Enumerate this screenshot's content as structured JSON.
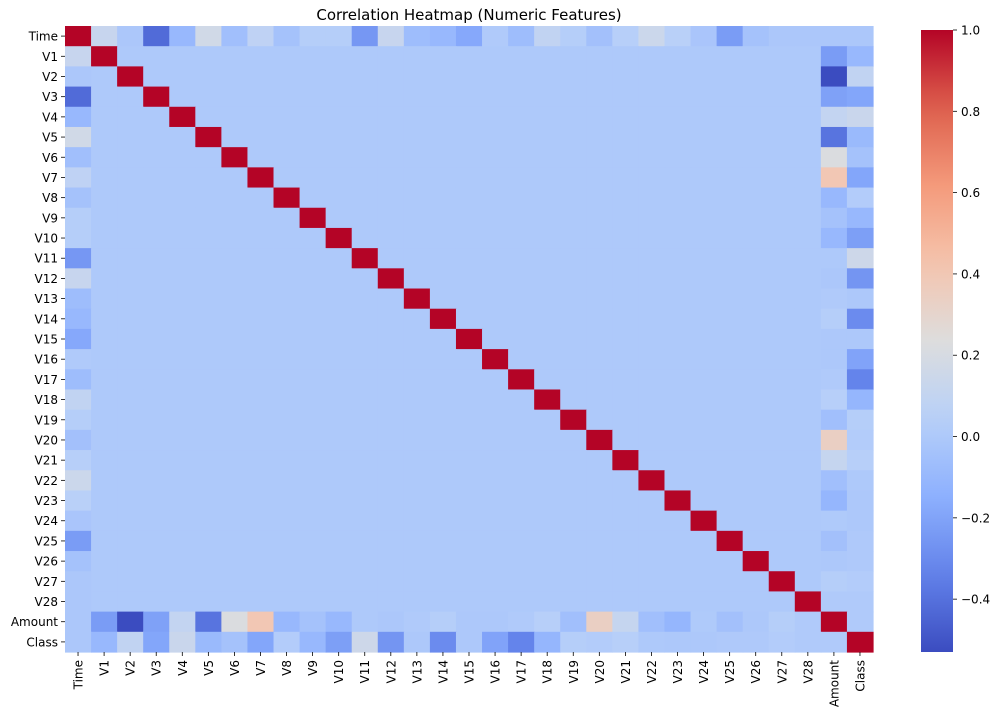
{
  "chart_data": {
    "type": "heatmap",
    "title": "Correlation Heatmap (Numeric Features)",
    "xlabel": "",
    "ylabel": "",
    "labels": [
      "Time",
      "V1",
      "V2",
      "V3",
      "V4",
      "V5",
      "V6",
      "V7",
      "V8",
      "V9",
      "V10",
      "V11",
      "V12",
      "V13",
      "V14",
      "V15",
      "V16",
      "V17",
      "V18",
      "V19",
      "V20",
      "V21",
      "V22",
      "V23",
      "V24",
      "V25",
      "V26",
      "V27",
      "V28",
      "Amount",
      "Class"
    ],
    "colorscale": "coolwarm",
    "vmin": -0.53,
    "vmax": 1.0,
    "colorbar_ticks": [
      -0.4,
      -0.2,
      0.0,
      0.2,
      0.4,
      0.6,
      0.8,
      1.0
    ],
    "colorbar_tick_labels": [
      "−0.4",
      "−0.2",
      "0.0",
      "0.2",
      "0.4",
      "0.6",
      "0.8",
      "1.0"
    ],
    "time_row": [
      1.0,
      0.12,
      -0.01,
      -0.42,
      -0.1,
      0.17,
      -0.06,
      0.08,
      -0.04,
      0.03,
      0.03,
      -0.25,
      0.12,
      -0.07,
      -0.1,
      -0.18,
      0.01,
      -0.07,
      0.09,
      0.03,
      -0.05,
      0.04,
      0.14,
      0.05,
      -0.02,
      -0.23,
      -0.04,
      -0.01,
      -0.01,
      -0.01,
      -0.01
    ],
    "amount_row": [
      -0.01,
      -0.23,
      -0.53,
      -0.21,
      0.1,
      -0.39,
      0.22,
      0.4,
      -0.1,
      -0.04,
      -0.1,
      0.0,
      -0.01,
      0.01,
      0.03,
      -0.003,
      -0.004,
      0.007,
      0.04,
      -0.06,
      0.34,
      0.11,
      -0.06,
      -0.11,
      0.005,
      -0.05,
      -0.003,
      0.03,
      0.01,
      1.0,
      0.01
    ],
    "class_row": [
      -0.01,
      -0.1,
      0.09,
      -0.19,
      0.13,
      -0.09,
      -0.04,
      -0.19,
      0.02,
      -0.1,
      -0.22,
      0.15,
      -0.26,
      -0.005,
      -0.3,
      -0.004,
      -0.2,
      -0.33,
      -0.11,
      0.03,
      0.02,
      0.04,
      0.001,
      -0.003,
      -0.007,
      0.003,
      0.004,
      0.02,
      0.01,
      0.01,
      1.0
    ]
  }
}
